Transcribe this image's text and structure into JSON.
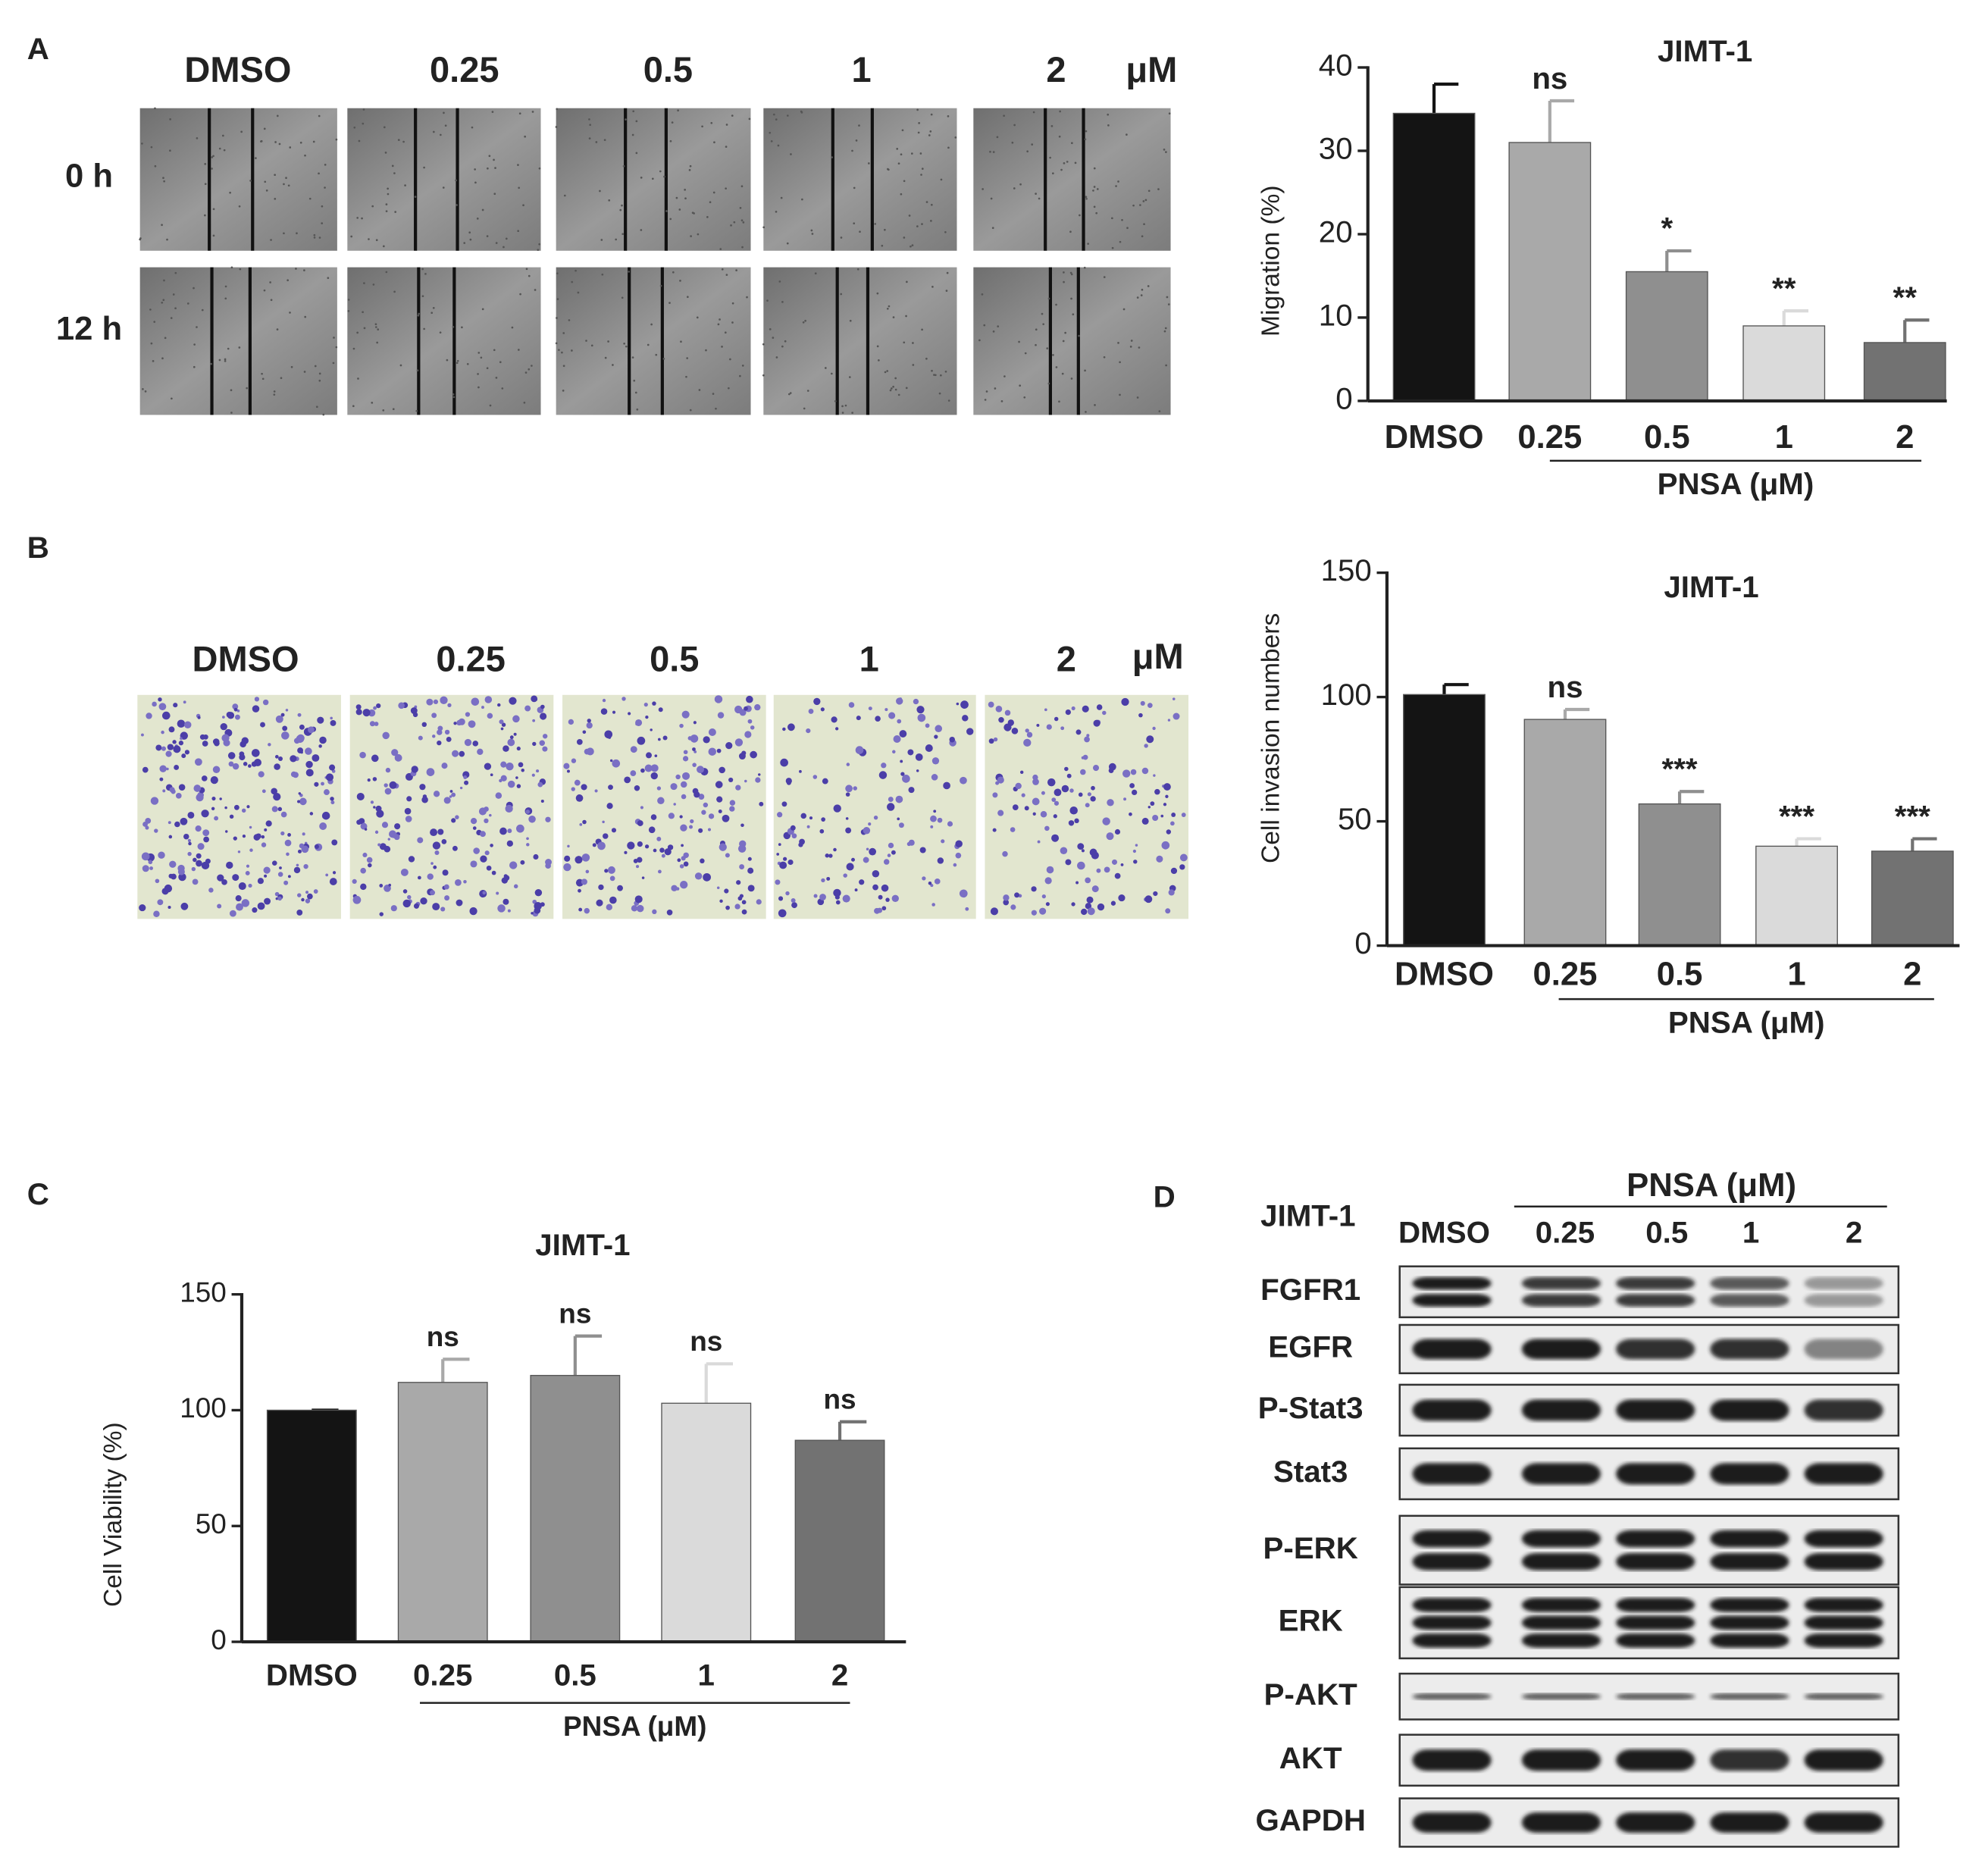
{
  "panel_a": {
    "letter": "A",
    "columns": [
      "DMSO",
      "0.25",
      "0.5",
      "1",
      "2"
    ],
    "unit": "μM",
    "rows": [
      "0 h",
      "12 h"
    ]
  },
  "panel_b": {
    "letter": "B",
    "columns": [
      "DMSO",
      "0.25",
      "0.5",
      "1",
      "2"
    ],
    "unit": "μM"
  },
  "panel_c": {
    "letter": "C"
  },
  "panel_d": {
    "letter": "D",
    "cell_line": "JIMT-1",
    "treatment": "PNSA (μM)",
    "lanes": [
      "DMSO",
      "0.25",
      "0.5",
      "1",
      "2"
    ],
    "proteins": [
      "FGFR1",
      "EGFR",
      "P-Stat3",
      "Stat3",
      "P-ERK",
      "ERK",
      "P-AKT",
      "AKT",
      "GAPDH"
    ]
  },
  "chart_data": [
    {
      "type": "bar",
      "title": "JIMT-1",
      "y_label": "Migration (%)",
      "categories": [
        "DMSO",
        "0.25",
        "0.5",
        "1",
        "2"
      ],
      "group_label": "PNSA (μM)",
      "values": [
        34.5,
        31,
        15.5,
        9,
        7
      ],
      "errors": [
        3.5,
        5,
        2.5,
        1.8,
        2.7
      ],
      "annotations": [
        null,
        "ns",
        "*",
        "**",
        "**"
      ],
      "colors": [
        "#141414",
        "#a9a9a9",
        "#8f8f8f",
        "#dadada",
        "#727272"
      ],
      "ylim": [
        0,
        40
      ],
      "yticks": [
        0,
        10,
        20,
        30,
        40
      ]
    },
    {
      "type": "bar",
      "title": "JIMT-1",
      "y_label": "Cell invasion numbers",
      "categories": [
        "DMSO",
        "0.25",
        "0.5",
        "1",
        "2"
      ],
      "group_label": "PNSA (μM)",
      "values": [
        101,
        91,
        57,
        40,
        38
      ],
      "errors": [
        4,
        4,
        5,
        3,
        5
      ],
      "annotations": [
        null,
        "ns",
        "***",
        "***",
        "***"
      ],
      "colors": [
        "#141414",
        "#a9a9a9",
        "#8f8f8f",
        "#dadada",
        "#727272"
      ],
      "ylim": [
        0,
        150
      ],
      "yticks": [
        0,
        50,
        100,
        150
      ]
    },
    {
      "type": "bar",
      "title": "JIMT-1",
      "y_label": "Cell Viability (%)",
      "categories": [
        "DMSO",
        "0.25",
        "0.5",
        "1",
        "2"
      ],
      "group_label": "PNSA (μM)",
      "values": [
        100,
        112,
        115,
        103,
        87
      ],
      "errors": [
        0,
        10,
        17,
        17,
        8
      ],
      "annotations": [
        null,
        "ns",
        "ns",
        "ns",
        "ns"
      ],
      "colors": [
        "#141414",
        "#a9a9a9",
        "#8f8f8f",
        "#dadada",
        "#727272"
      ],
      "ylim": [
        0,
        150
      ],
      "yticks": [
        0,
        50,
        100,
        150
      ]
    }
  ]
}
